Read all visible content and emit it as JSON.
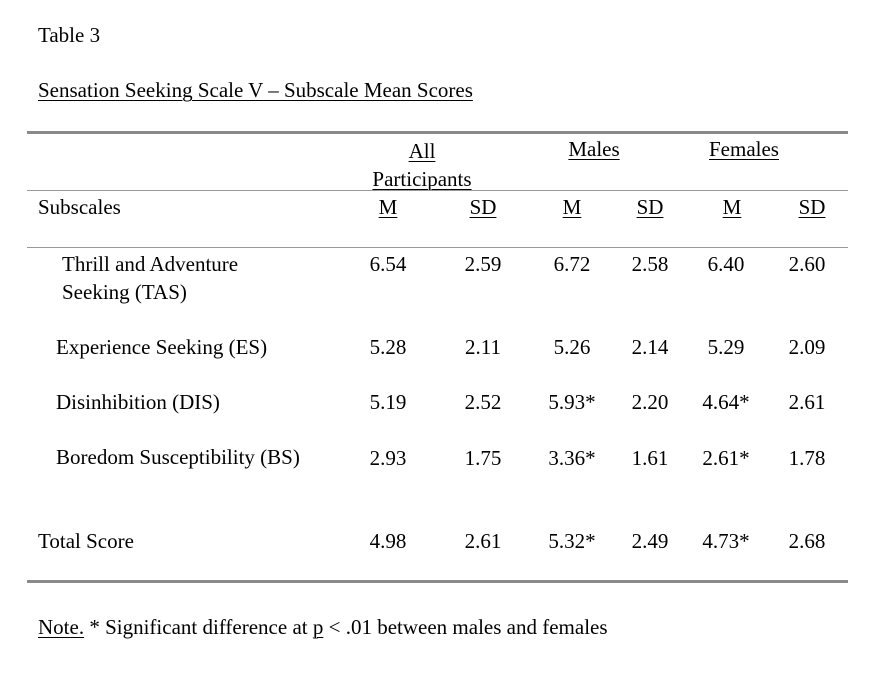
{
  "table_label": "Table 3",
  "table_title": "Sensation Seeking Scale V – Subscale Mean Scores",
  "groups": {
    "all": "All Participants",
    "males": "Males",
    "females": "Females"
  },
  "subheader": {
    "label": "Subscales",
    "m": "M",
    "sd": "SD"
  },
  "rows": [
    {
      "label": "Thrill and Adventure Seeking (TAS)",
      "all_m": "6.54",
      "all_sd": "2.59",
      "m_m": "6.72",
      "m_sd": "2.58",
      "f_m": "6.40",
      "f_sd": "2.60"
    },
    {
      "label": "Experience Seeking (ES)",
      "all_m": "5.28",
      "all_sd": "2.11",
      "m_m": "5.26",
      "m_sd": "2.14",
      "f_m": "5.29",
      "f_sd": "2.09"
    },
    {
      "label": "Disinhibition (DIS)",
      "all_m": "5.19",
      "all_sd": "2.52",
      "m_m": "5.93*",
      "m_sd": "2.20",
      "f_m": "4.64*",
      "f_sd": "2.61"
    },
    {
      "label": "Boredom Susceptibility (BS)",
      "all_m": "2.93",
      "all_sd": "1.75",
      "m_m": "3.36*",
      "m_sd": "1.61",
      "f_m": "2.61*",
      "f_sd": "1.78"
    },
    {
      "label": "Total Score",
      "all_m": "4.98",
      "all_sd": "2.61",
      "m_m": "5.32*",
      "m_sd": "2.49",
      "f_m": "4.73*",
      "f_sd": "2.68"
    }
  ],
  "note": {
    "label": "Note.",
    "text_before": " * Significant difference at ",
    "p": "p",
    "text_after": " < .01 between males and females"
  }
}
